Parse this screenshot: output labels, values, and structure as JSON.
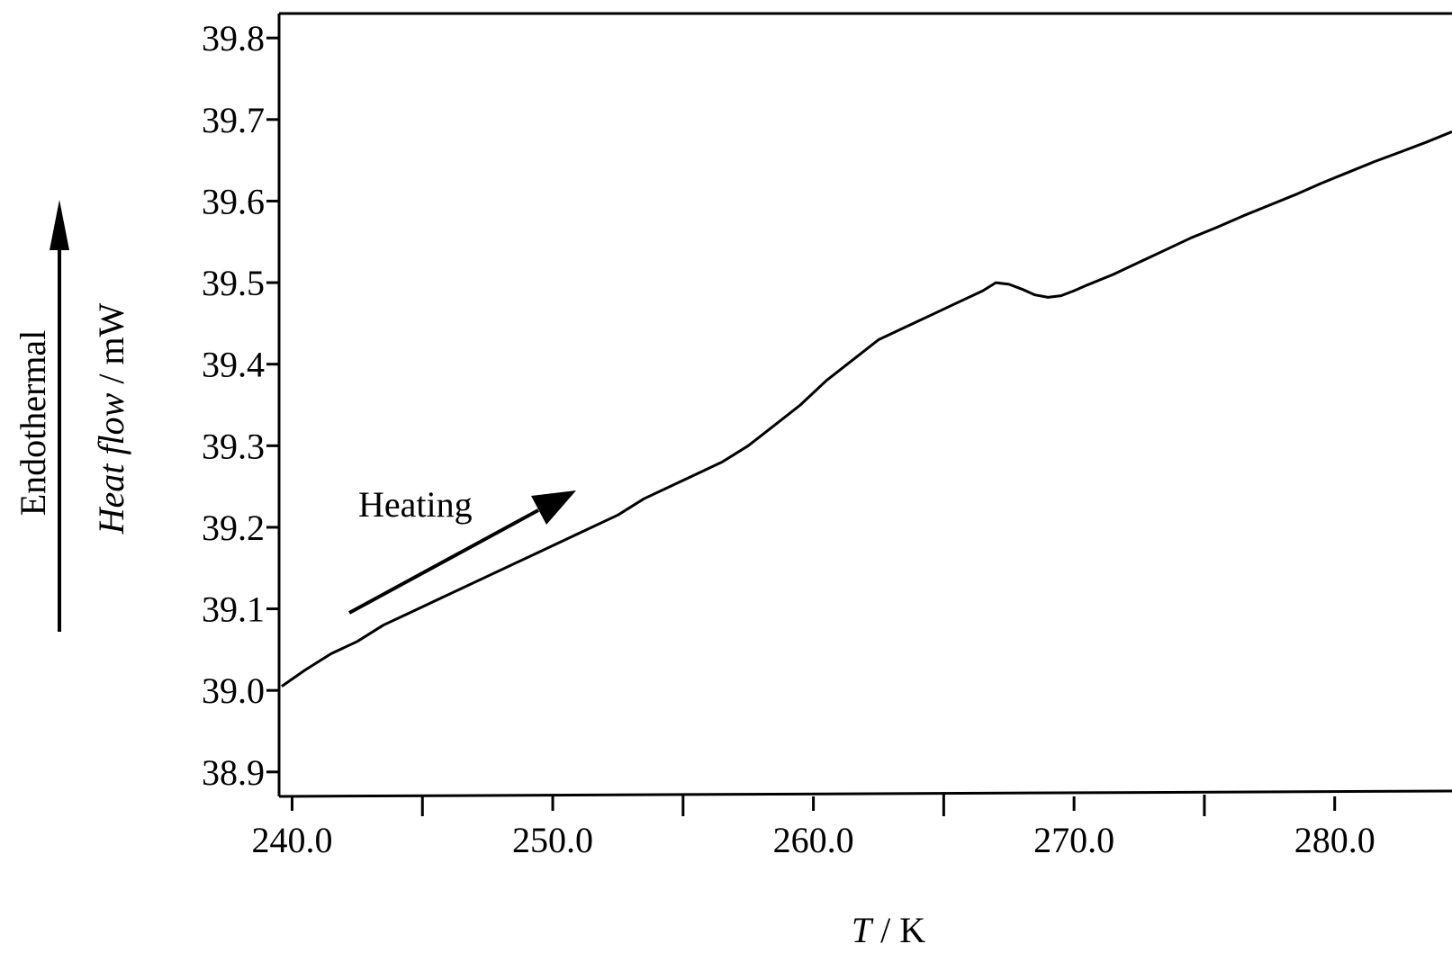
{
  "chart_data": {
    "type": "line",
    "title": "",
    "xlabel": {
      "symbol": "T",
      "unit": " / K"
    },
    "ylabel": {
      "quantity": "Heat flow",
      "unit": " / mW"
    },
    "side_label": "Endothermal",
    "annotation": "Heating",
    "xlim": [
      239.5,
      284.5
    ],
    "ylim": [
      38.87,
      39.83
    ],
    "x_ticks": [
      {
        "value": 240,
        "label": "240.0"
      },
      {
        "value": 250,
        "label": "250.0"
      },
      {
        "value": 260,
        "label": "260.0"
      },
      {
        "value": 270,
        "label": "270.0"
      },
      {
        "value": 280,
        "label": "280.0"
      }
    ],
    "x_minor_ticks": [
      245,
      255,
      265,
      275
    ],
    "y_ticks": [
      {
        "value": 38.9,
        "label": "38.9"
      },
      {
        "value": 39.0,
        "label": "39.0"
      },
      {
        "value": 39.1,
        "label": "39.1"
      },
      {
        "value": 39.2,
        "label": "39.2"
      },
      {
        "value": 39.3,
        "label": "39.3"
      },
      {
        "value": 39.4,
        "label": "39.4"
      },
      {
        "value": 39.5,
        "label": "39.5"
      },
      {
        "value": 39.6,
        "label": "39.6"
      },
      {
        "value": 39.7,
        "label": "39.7"
      },
      {
        "value": 39.8,
        "label": "39.8"
      }
    ],
    "grid": false,
    "series": [
      {
        "x": [
          239.6,
          240.5,
          241.5,
          242.5,
          243.5,
          244.5,
          245.5,
          246.5,
          247.5,
          248.5,
          249.5,
          250.5,
          251.5,
          252.5,
          253.5,
          254.5,
          255.5,
          256.5,
          257.5,
          258.5,
          259.5,
          260.5,
          261.5,
          262.5,
          263.5,
          264.5,
          265.5,
          266.5,
          267.0,
          267.5,
          268.0,
          268.5,
          269.0,
          269.5,
          270.0,
          270.5,
          271.5,
          272.5,
          273.5,
          274.5,
          275.5,
          276.5,
          277.5,
          278.5,
          279.5,
          280.5,
          281.5,
          282.5,
          283.5,
          284.5
        ],
        "y": [
          39.005,
          39.025,
          39.045,
          39.06,
          39.08,
          39.095,
          39.11,
          39.125,
          39.14,
          39.155,
          39.17,
          39.185,
          39.2,
          39.215,
          39.235,
          39.25,
          39.265,
          39.28,
          39.3,
          39.325,
          39.35,
          39.38,
          39.405,
          39.43,
          39.445,
          39.46,
          39.475,
          39.49,
          39.5,
          39.498,
          39.492,
          39.485,
          39.482,
          39.484,
          39.49,
          39.497,
          39.51,
          39.525,
          39.54,
          39.555,
          39.568,
          39.582,
          39.595,
          39.608,
          39.622,
          39.635,
          39.648,
          39.66,
          39.672,
          39.685
        ]
      }
    ]
  }
}
